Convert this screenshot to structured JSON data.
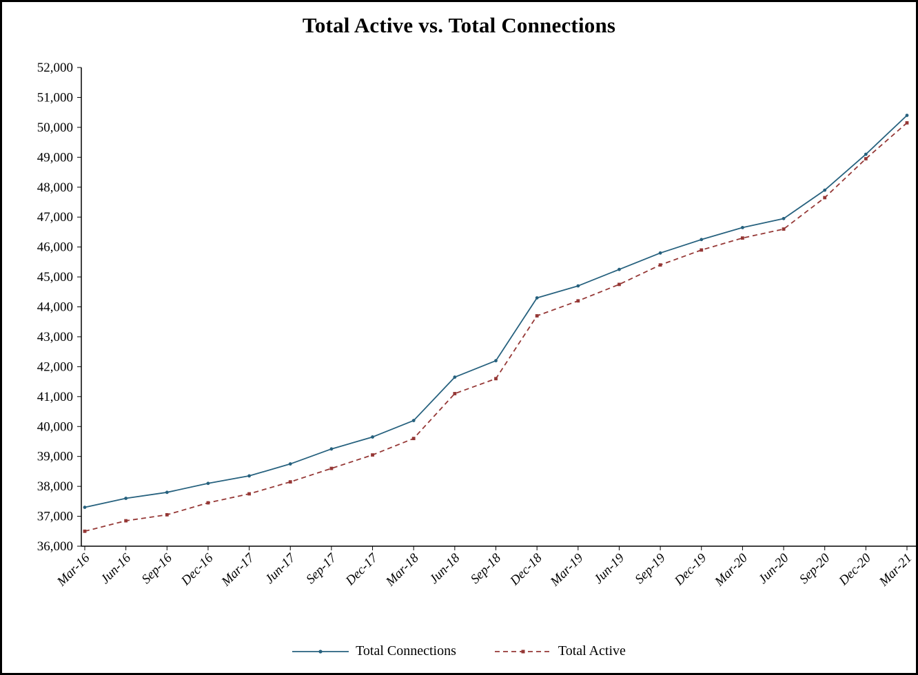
{
  "title": "Total Active vs. Total Connections",
  "chart_data": {
    "type": "line",
    "title": "Total Active vs. Total Connections",
    "xlabel": "",
    "ylabel": "",
    "ylim": [
      36000,
      52000
    ],
    "ytick_step": 1000,
    "grid": false,
    "legend_position": "bottom",
    "categories": [
      "Mar-16",
      "Jun-16",
      "Sep-16",
      "Dec-16",
      "Mar-17",
      "Jun-17",
      "Sep-17",
      "Dec-17",
      "Mar-18",
      "Jun-18",
      "Sep-18",
      "Dec-18",
      "Mar-19",
      "Jun-19",
      "Sep-19",
      "Dec-19",
      "Mar-20",
      "Jun-20",
      "Sep-20",
      "Dec-20",
      "Mar-21"
    ],
    "series": [
      {
        "name": "Total Connections",
        "color": "#26617E",
        "line_style": "solid",
        "marker": "circle",
        "values": [
          37300,
          37600,
          37800,
          38100,
          38350,
          38750,
          39250,
          39650,
          40200,
          41650,
          42200,
          44300,
          44700,
          45250,
          45800,
          46250,
          46650,
          46950,
          47900,
          49100,
          50400
        ]
      },
      {
        "name": "Total Active",
        "color": "#953735",
        "line_style": "dashed",
        "marker": "square",
        "values": [
          36500,
          36850,
          37050,
          37450,
          37750,
          38150,
          38600,
          39050,
          39600,
          41100,
          41600,
          43700,
          44200,
          44750,
          45400,
          45900,
          46300,
          46600,
          47650,
          48950,
          50150
        ]
      }
    ],
    "legend": [
      "Total Connections",
      "Total Active"
    ]
  }
}
